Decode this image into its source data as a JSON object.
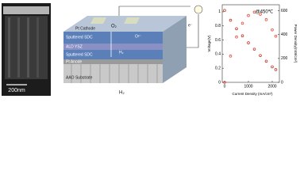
{
  "sem": {
    "scale_bar": "200nm"
  },
  "diagram": {
    "cathode": "Pt Cathode",
    "oxygen": "O₂",
    "oxide_ion": "O²⁻",
    "electron": "e⁻",
    "layer_top_sdc": "Sputtered SDC",
    "layer_ysz": "ALD YSZ",
    "layer_bottom_sdc": "Sputtered SDC",
    "anode": "Pt Anode",
    "hydrogen_inner": "H₂",
    "substrate": "AAO Substrate",
    "hydrogen": "H₂"
  },
  "chart_data": {
    "type": "line",
    "annotation": "@450℃",
    "x_label": "Current Density (mA/cm²)",
    "y_label": "Voltage(V)",
    "y2_label": "Power Density(mW/cm²)",
    "x": [
      0,
      250,
      500,
      750,
      1000,
      1250,
      1500,
      1750,
      2000,
      2150
    ],
    "series": [
      {
        "name": "Voltage",
        "color": "#c0392b",
        "values": [
          1.02,
          0.88,
          0.76,
          0.66,
          0.56,
          0.47,
          0.38,
          0.3,
          0.22,
          0.18
        ]
      },
      {
        "name": "Power Density",
        "color": "#e74c3c",
        "axis": "y2",
        "values": [
          0,
          220,
          380,
          495,
          560,
          588,
          570,
          525,
          440,
          387
        ]
      }
    ],
    "xlim": [
      -100,
      2300
    ],
    "xticks": [
      0,
      1000,
      2000
    ],
    "ylim": [
      0,
      1.1
    ],
    "yticks": [
      0,
      0.2,
      0.4,
      0.6,
      0.8,
      1
    ],
    "y2lim": [
      0,
      650
    ],
    "y2ticks": [
      0,
      200,
      400,
      600
    ]
  }
}
